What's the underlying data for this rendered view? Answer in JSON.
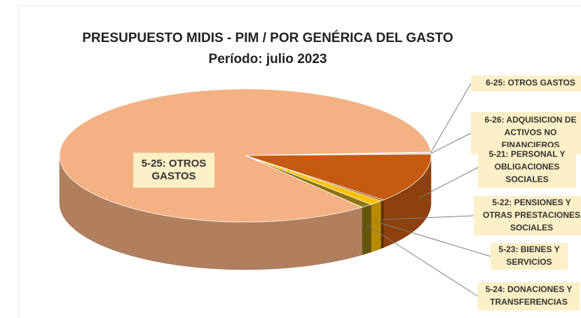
{
  "chart_data": {
    "type": "pie3d",
    "title": "PRESUPUESTO MIDIS - PIM / POR GENÉRICA DEL GASTO",
    "subtitle": "Período: julio 2023",
    "categories": [
      [
        "6-25: OTROS GASTOS"
      ],
      [
        "6-26: ADQUISICION DE",
        "ACTIVOS NO",
        "FINANCIEROS"
      ],
      [
        "5-21: PERSONAL Y",
        "OBLIGACIONES",
        "SOCIALES"
      ],
      [
        "5-22: PENSIONES Y",
        "OTRAS PRESTACIONES",
        "SOCIALES"
      ],
      [
        "5-23: BIENES Y",
        "SERVICIOS"
      ],
      [
        "5-24: DONACIONES Y",
        "TRANSFERENCIAS"
      ],
      [
        "5-25: OTROS",
        "GASTOS"
      ]
    ],
    "values": [
      0.2,
      0.3,
      12,
      0.3,
      1.2,
      1.0,
      85
    ],
    "colors": [
      "#9dc3e6",
      "#bfbfbf",
      "#c55a11",
      "#7f3f00",
      "#ffc000",
      "#8c7410",
      "#f4b183"
    ]
  }
}
